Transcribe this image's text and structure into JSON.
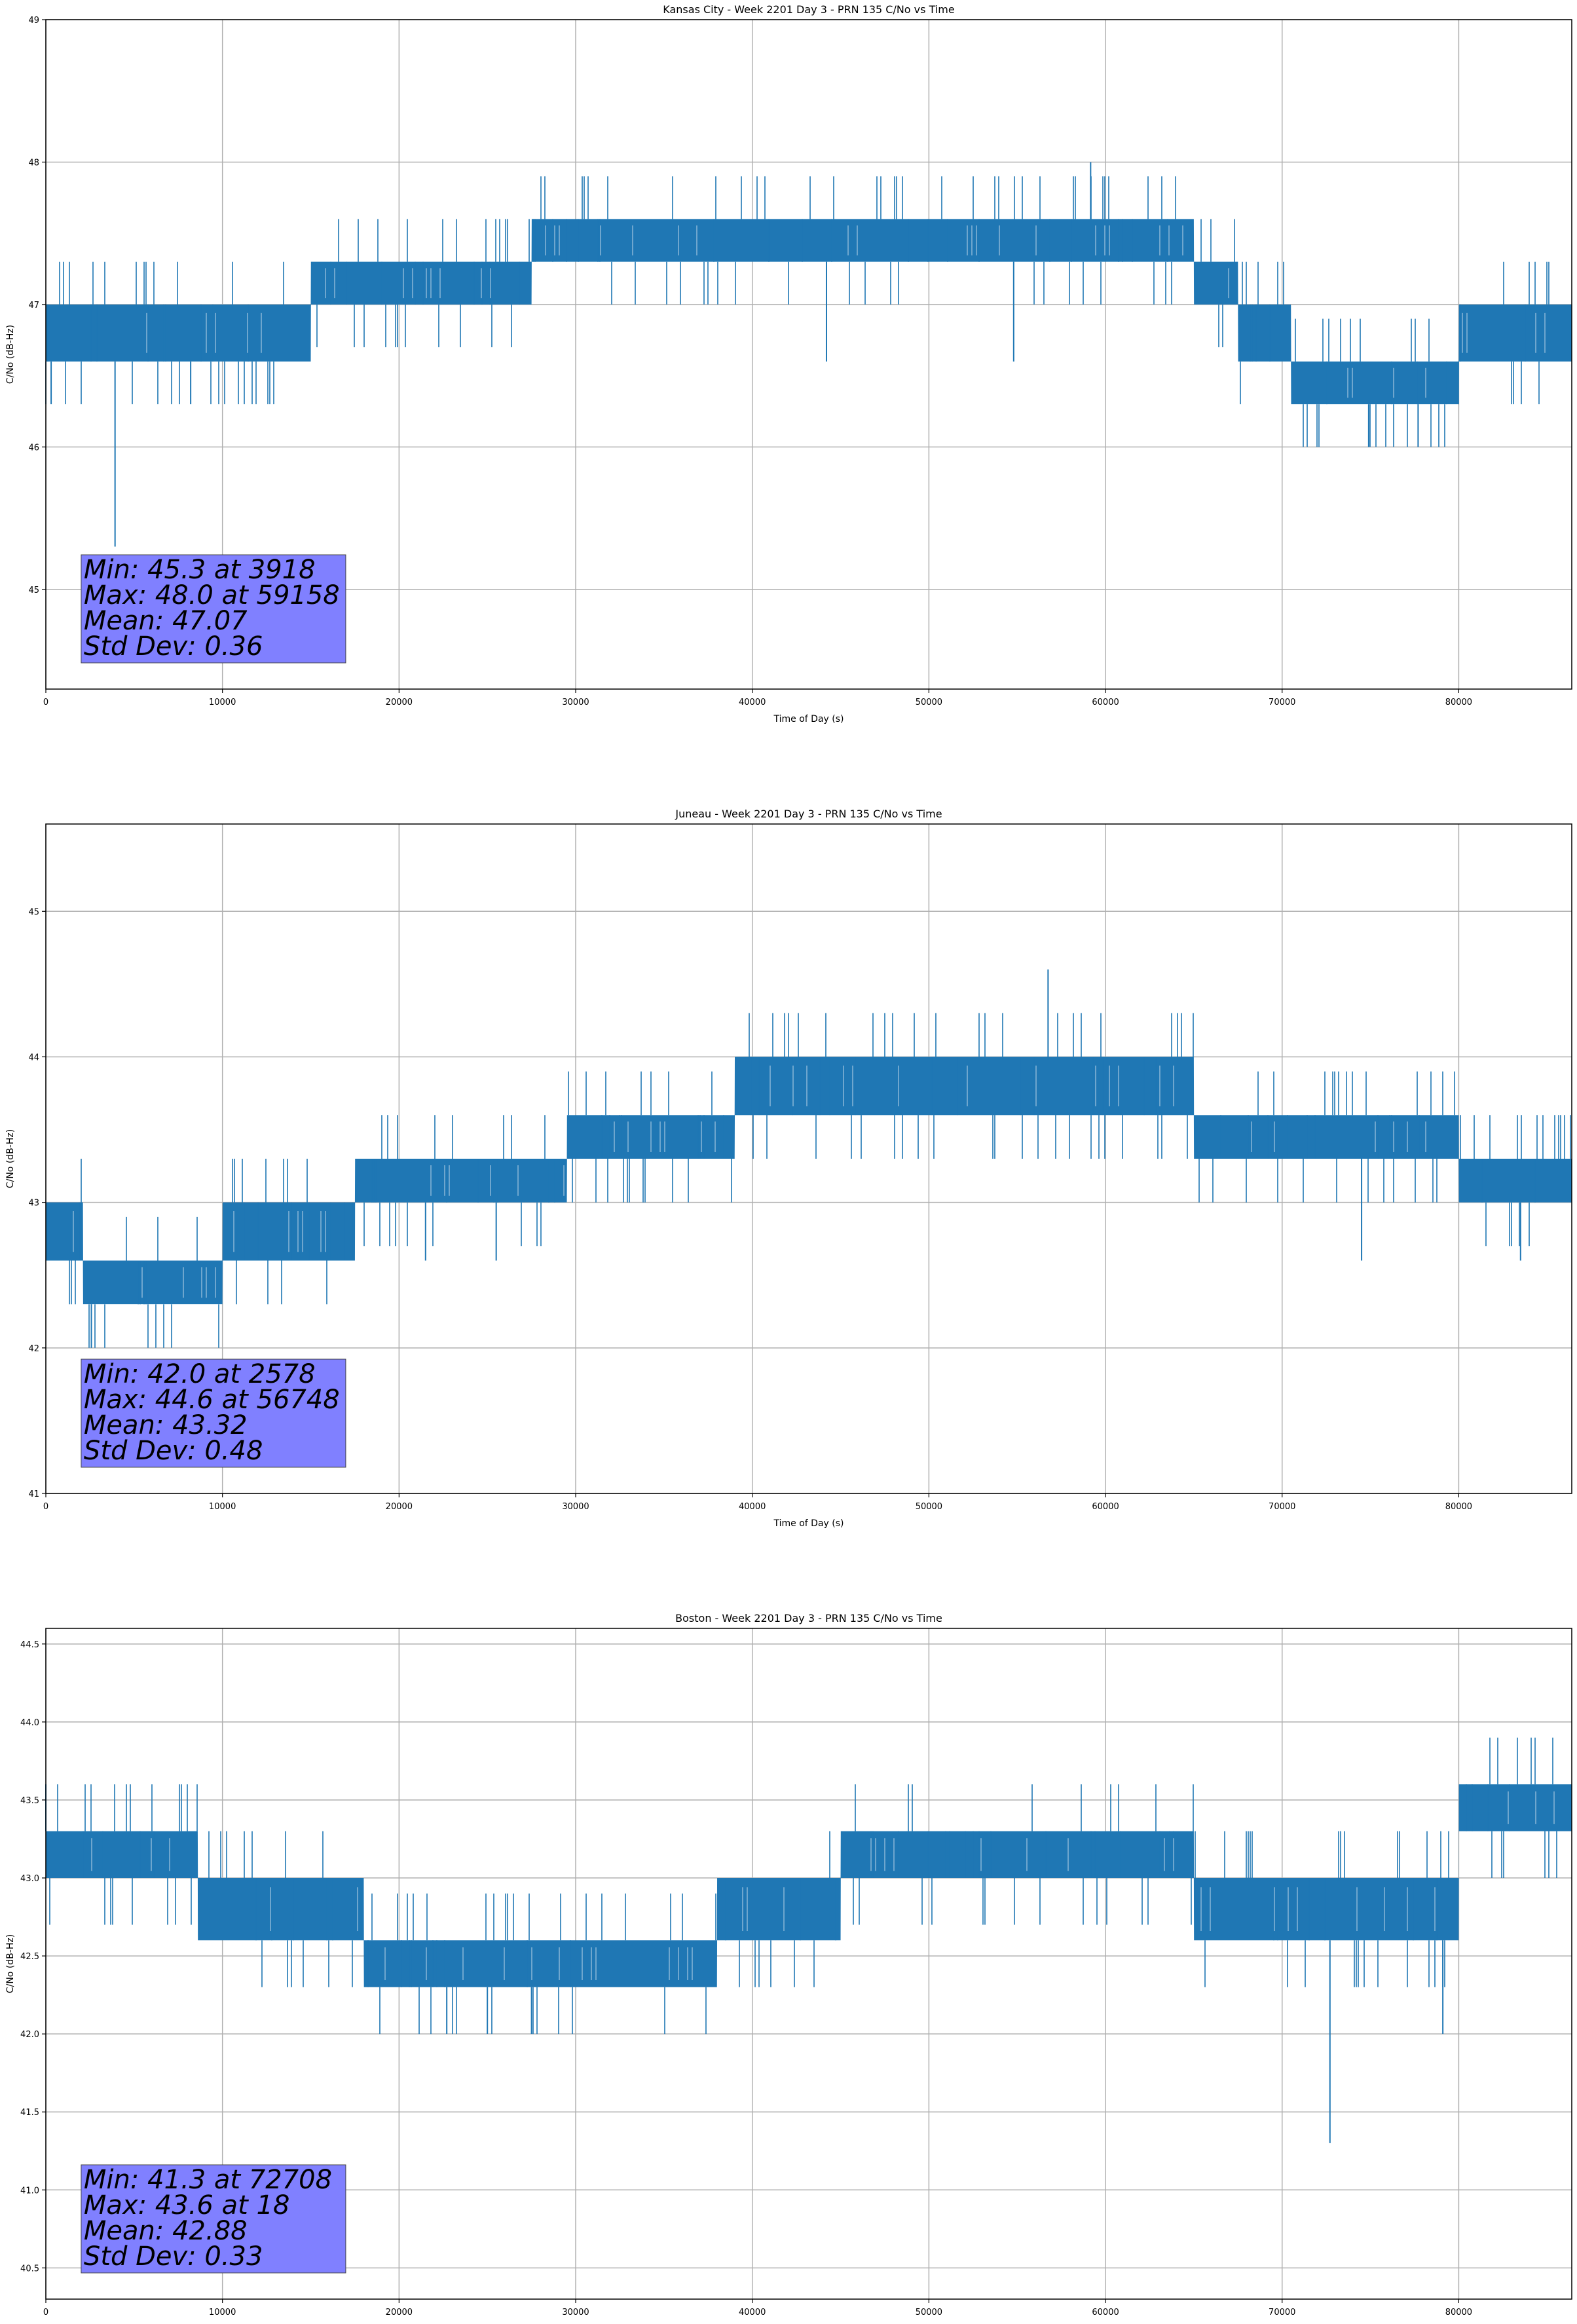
{
  "chart_data": [
    {
      "type": "line",
      "title": "Kansas City - Week 2201 Day 3 - PRN 135 C/No vs Time",
      "xlabel": "Time of Day (s)",
      "ylabel": "C/No (dB-Hz)",
      "xlim": [
        0,
        86400
      ],
      "ylim": [
        44.3,
        49.0
      ],
      "xticks": [
        0,
        10000,
        20000,
        30000,
        40000,
        50000,
        60000,
        70000,
        80000
      ],
      "yticks": [
        45,
        46,
        47,
        48,
        49
      ],
      "grid": true,
      "color": "#1f77b4",
      "series": [
        {
          "x": [
            0,
            2200,
            2210,
            15000,
            15010,
            24000,
            24010,
            27500,
            27510,
            41000,
            41010,
            56000,
            56010,
            65000,
            65010,
            67500,
            67510,
            70500,
            70510,
            80000,
            80010,
            86400
          ],
          "low": [
            46.6,
            46.6,
            46.6,
            46.6,
            47.0,
            47.0,
            47.0,
            47.0,
            47.3,
            47.3,
            47.3,
            47.3,
            47.3,
            47.3,
            47.0,
            47.0,
            46.6,
            46.6,
            46.3,
            46.3,
            46.6,
            46.6
          ],
          "high": [
            47.0,
            47.0,
            47.0,
            47.0,
            47.3,
            47.3,
            47.3,
            47.3,
            47.6,
            47.6,
            47.6,
            47.6,
            47.6,
            47.6,
            47.3,
            47.3,
            47.0,
            47.0,
            46.6,
            46.6,
            47.0,
            47.0
          ]
        }
      ],
      "spikes": [
        [
          3918,
          45.3
        ],
        [
          59158,
          48.0
        ],
        [
          74900,
          46.0
        ],
        [
          77700,
          46.0
        ],
        [
          300,
          46.3
        ],
        [
          8200,
          46.3
        ],
        [
          54800,
          46.6
        ],
        [
          44200,
          46.6
        ]
      ],
      "stats": {
        "min": "Min: 45.3 at 3918",
        "max": "Max: 48.0 at 59158",
        "mean": "Mean: 47.07",
        "std": "Std Dev: 0.36"
      }
    },
    {
      "type": "line",
      "title": "Juneau - Week 2201 Day 3 - PRN 135 C/No vs Time",
      "xlabel": "Time of Day (s)",
      "ylabel": "C/No (dB-Hz)",
      "xlim": [
        0,
        86400
      ],
      "ylim": [
        41.0,
        45.6
      ],
      "xticks": [
        0,
        10000,
        20000,
        30000,
        40000,
        50000,
        60000,
        70000,
        80000
      ],
      "yticks": [
        41,
        42,
        43,
        44,
        45
      ],
      "grid": true,
      "color": "#1f77b4",
      "series": [
        {
          "x": [
            0,
            2100,
            2110,
            10000,
            10010,
            17500,
            17510,
            29500,
            29510,
            39000,
            39010,
            58500,
            58510,
            65000,
            65010,
            80000,
            80010,
            86400
          ],
          "low": [
            42.6,
            42.6,
            42.3,
            42.3,
            42.6,
            42.6,
            43.0,
            43.0,
            43.3,
            43.3,
            43.6,
            43.6,
            43.6,
            43.6,
            43.3,
            43.3,
            43.0,
            43.0
          ],
          "high": [
            43.0,
            43.0,
            42.6,
            42.6,
            43.0,
            43.0,
            43.3,
            43.3,
            43.6,
            43.6,
            44.0,
            44.0,
            44.0,
            44.0,
            43.6,
            43.6,
            43.3,
            43.3
          ]
        }
      ],
      "spikes": [
        [
          2578,
          42.0
        ],
        [
          56748,
          44.6
        ],
        [
          74500,
          42.6
        ],
        [
          83500,
          42.6
        ],
        [
          21500,
          42.6
        ],
        [
          25500,
          42.6
        ]
      ],
      "stats": {
        "min": "Min: 42.0 at 2578",
        "max": "Max: 44.6 at 56748",
        "mean": "Mean: 43.32",
        "std": "Std Dev: 0.48"
      }
    },
    {
      "type": "line",
      "title": "Boston - Week 2201 Day 3 - PRN 135 C/No vs Time",
      "xlabel": "Time of Day (s)",
      "ylabel": "C/No (dB-Hz)",
      "xlim": [
        0,
        86400
      ],
      "ylim": [
        40.3,
        44.6
      ],
      "xticks": [
        0,
        10000,
        20000,
        30000,
        40000,
        50000,
        60000,
        70000,
        80000
      ],
      "yticks": [
        40.5,
        41.0,
        41.5,
        42.0,
        42.5,
        43.0,
        43.5,
        44.0,
        44.5
      ],
      "grid": true,
      "color": "#1f77b4",
      "series": [
        {
          "x": [
            0,
            8600,
            8610,
            18000,
            18010,
            27000,
            27010,
            38000,
            38010,
            45000,
            45010,
            65000,
            65010,
            80000,
            80010,
            86400
          ],
          "low": [
            43.0,
            43.0,
            42.6,
            42.6,
            42.3,
            42.3,
            42.3,
            42.3,
            42.6,
            42.6,
            43.0,
            43.0,
            42.6,
            42.6,
            43.3,
            43.3
          ],
          "high": [
            43.3,
            43.3,
            43.0,
            43.0,
            42.6,
            42.6,
            42.6,
            42.6,
            43.0,
            43.0,
            43.3,
            43.3,
            43.0,
            43.0,
            43.6,
            43.6
          ],
          "minor_low": [
            42.6
          ]
        }
      ],
      "spikes": [
        [
          72708,
          41.3
        ],
        [
          79100,
          42.0
        ],
        [
          22700,
          42.0
        ],
        [
          25000,
          42.0
        ],
        [
          27500,
          42.0
        ],
        [
          0,
          43.6
        ]
      ],
      "stats": {
        "min": "Min: 41.3 at 72708",
        "max": "Max: 43.6 at 18",
        "mean": "Mean: 42.88",
        "std": "Std Dev: 0.33"
      }
    }
  ]
}
